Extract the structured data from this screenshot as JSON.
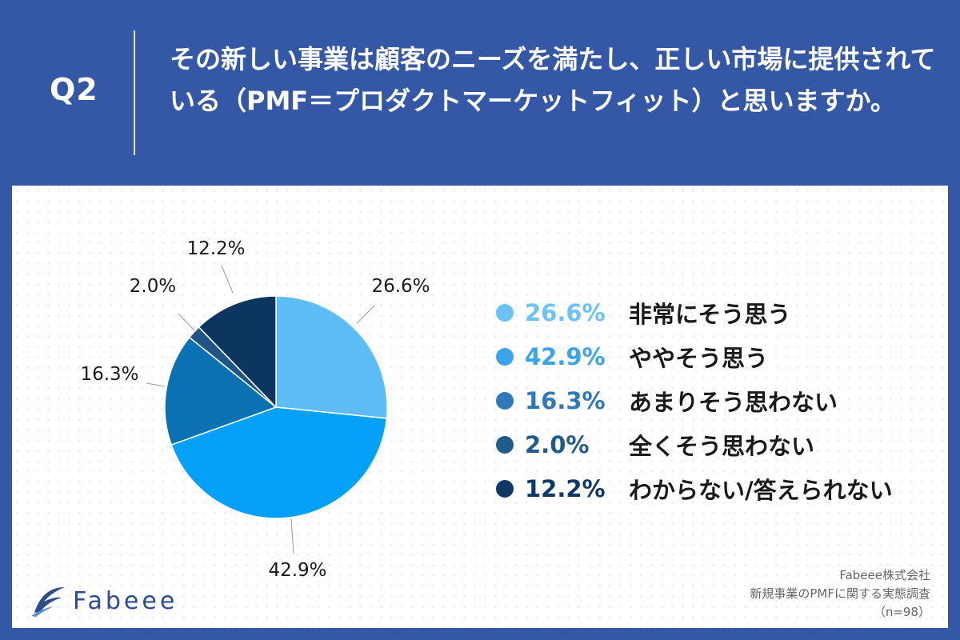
{
  "header": {
    "q_label": "Q2",
    "question": "その新しい事業は顧客のニーズを満たし、正しい市場に提供されている（PMF＝プロダクトマーケットフィット）と思いますか。"
  },
  "chart_data": {
    "type": "pie",
    "title": "その新しい事業は顧客のニーズを満たし、正しい市場に提供されている（PMF＝プロダクトマーケットフィット）と思いますか。",
    "start": "12 o'clock, clockwise",
    "slices": [
      {
        "label": "非常にそう思う",
        "value": 26.6,
        "display": "26.6%",
        "color": "#5ebcf6",
        "legend_color": "#6cc2f4"
      },
      {
        "label": "ややそう思う",
        "value": 42.9,
        "display": "42.9%",
        "color": "#02a0f7",
        "legend_color": "#3aa4ea"
      },
      {
        "label": "あまりそう思わない",
        "value": 16.3,
        "display": "16.3%",
        "color": "#0a72b3",
        "legend_color": "#2f78b9"
      },
      {
        "label": "全くそう思わない",
        "value": 2.0,
        "display": "2.0%",
        "color": "#1e5584",
        "legend_color": "#215a8c"
      },
      {
        "label": "わからない/答えられない",
        "value": 12.2,
        "display": "12.2%",
        "color": "#0c3560",
        "legend_color": "#103865"
      }
    ]
  },
  "logo": {
    "text": "Fabeee"
  },
  "footer": {
    "company": "Fabeee株式会社",
    "survey": "新規事業のPMFに関する実態調査",
    "sample": "（n=98）"
  }
}
